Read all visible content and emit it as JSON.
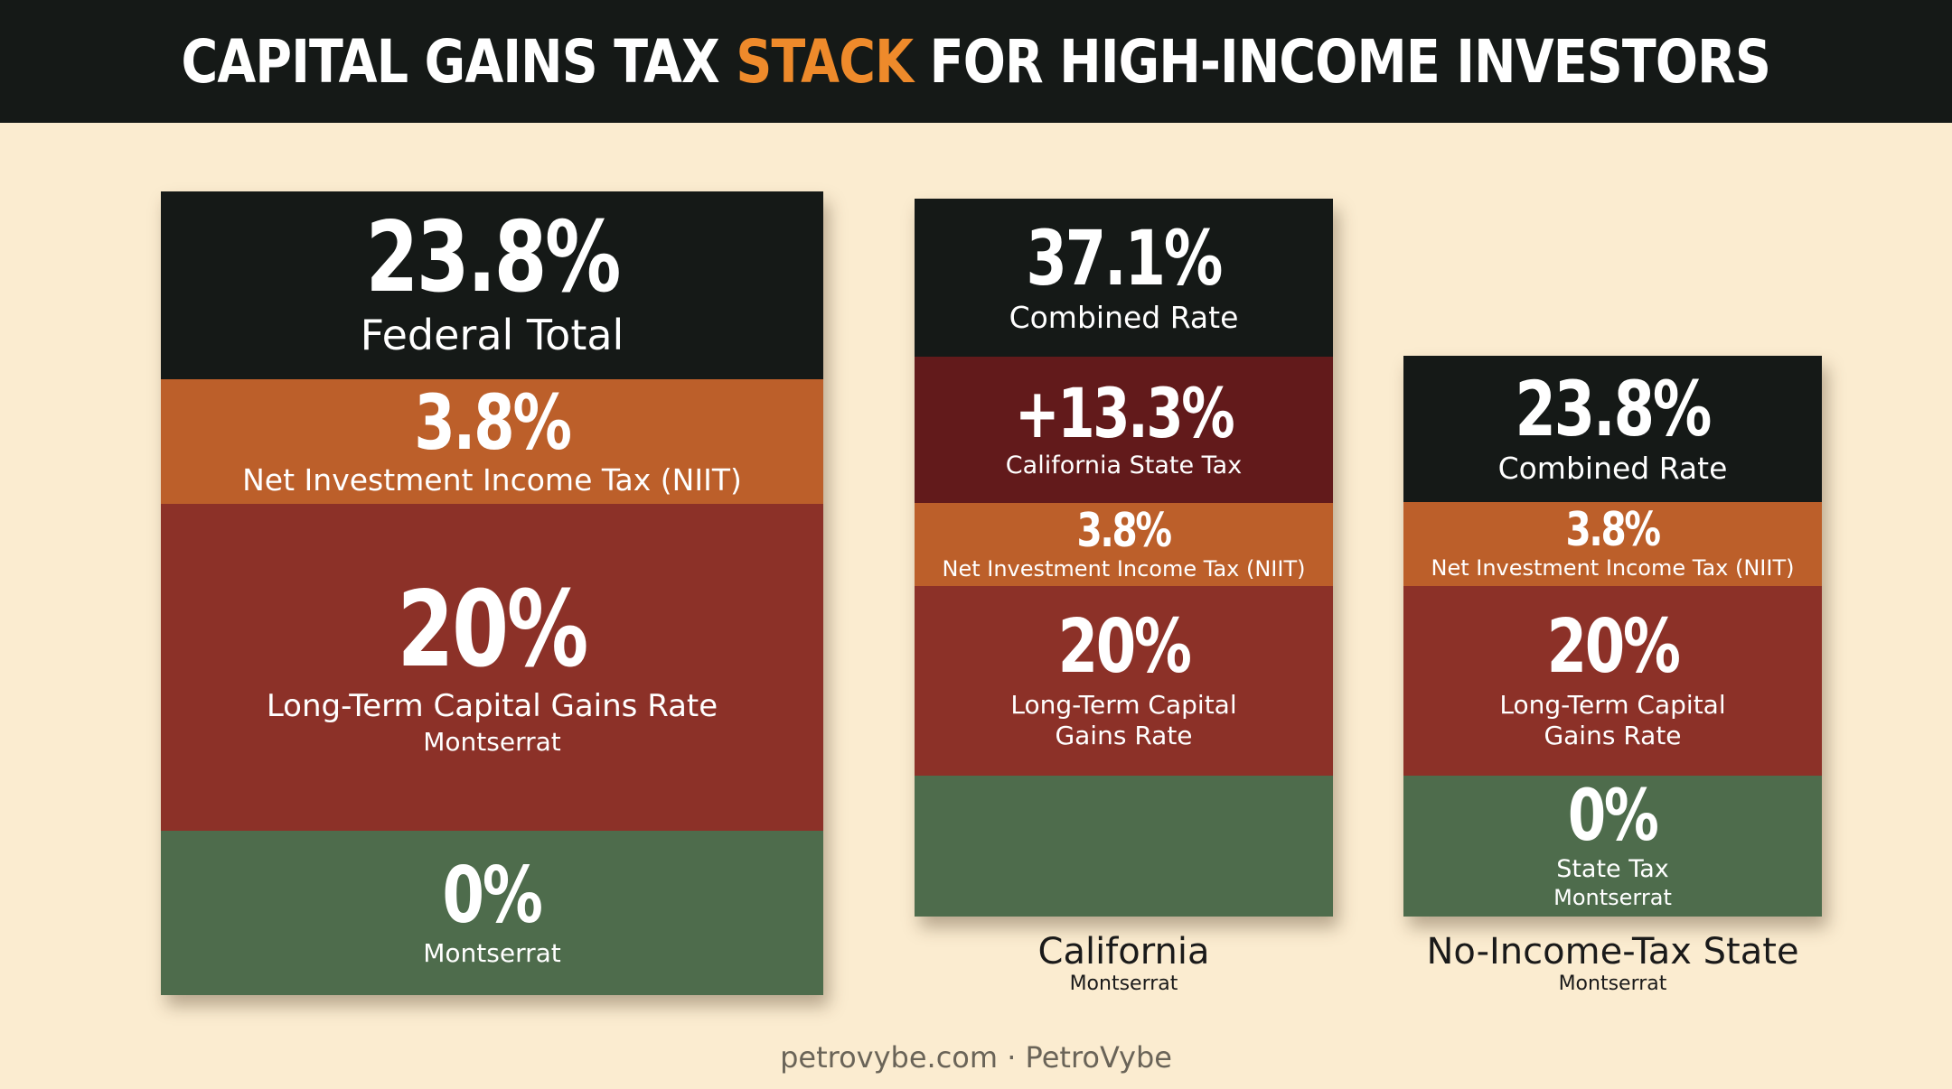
{
  "header": {
    "title_before": "CAPITAL GAINS TAX",
    "title_accent": "STACK",
    "title_after": "FOR HIGH-INCOME INVESTORS"
  },
  "federal": {
    "total_value": "23.8%",
    "total_label": "Federal Total",
    "niit_value": "3.8%",
    "niit_label": "Net Investment Income Tax (NIIT)",
    "ltcg_value": "20%",
    "ltcg_label": "Long-Term Capital Gains Rate",
    "ltcg_sub": "Montserrat",
    "state_value": "0%",
    "state_sub": "Montserrat"
  },
  "california": {
    "combined_value": "37.1%",
    "combined_label": "Combined Rate",
    "state_value": "+13.3%",
    "state_label": "California State Tax",
    "niit_value": "3.8%",
    "niit_label": "Net Investment Income Tax (NIIT)",
    "ltcg_value": "20%",
    "ltcg_label_line1": "Long-Term Capital",
    "ltcg_label_line2": "Gains Rate",
    "caption": "California",
    "caption_sub": "Montserrat"
  },
  "no_tax_state": {
    "combined_value": "23.8%",
    "combined_label": "Combined Rate",
    "niit_value": "3.8%",
    "niit_label": "Net Investment Income Tax (NIIT)",
    "ltcg_value": "20%",
    "ltcg_label_line1": "Long-Term Capital",
    "ltcg_label_line2": "Gains Rate",
    "state_value": "0%",
    "state_label": "State Tax",
    "state_sub": "Montserrat",
    "caption": "No-Income-Tax State",
    "caption_sub": "Montserrat"
  },
  "footer": {
    "text": "petrovybe.com · PetroVybe"
  },
  "colors": {
    "background": "#fbecd0",
    "header": "#151917",
    "accent": "#ee8a2b",
    "dark_segment": "#151917",
    "niit_segment": "#bc5f2a",
    "ltcg_segment": "#8c3128",
    "california_segment": "#621a1b",
    "state_segment": "#4e6c4c"
  }
}
